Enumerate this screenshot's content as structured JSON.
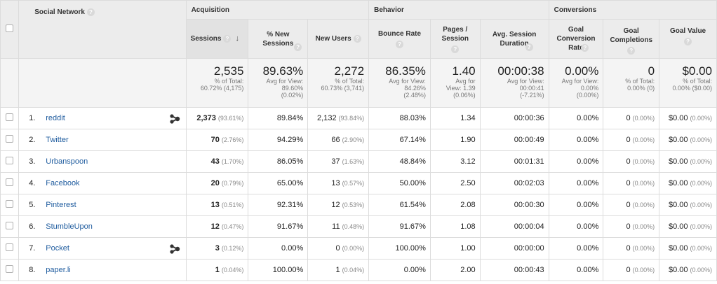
{
  "headers": {
    "social_network": "Social Network",
    "groups": {
      "acquisition": "Acquisition",
      "behavior": "Behavior",
      "conversions": "Conversions"
    },
    "columns": {
      "sessions": "Sessions",
      "new_sessions": "% New Sessions",
      "new_users": "New Users",
      "bounce_rate": "Bounce Rate",
      "pages_session": "Pages / Session",
      "avg_duration": "Avg. Session Duration",
      "goal_conv_rate": "Goal Conversion Rate",
      "goal_completions": "Goal Completions",
      "goal_value": "Goal Value"
    }
  },
  "totals": {
    "sessions": {
      "value": "2,535",
      "sub1": "% of Total:",
      "sub2": "60.72% (4,175)"
    },
    "new_sessions": {
      "value": "89.63%",
      "sub1": "Avg for View:",
      "sub2": "89.60%",
      "sub3": "(0.02%)"
    },
    "new_users": {
      "value": "2,272",
      "sub1": "% of Total:",
      "sub2": "60.73% (3,741)"
    },
    "bounce_rate": {
      "value": "86.35%",
      "sub1": "Avg for View:",
      "sub2": "84.26%",
      "sub3": "(2.48%)"
    },
    "pages_session": {
      "value": "1.40",
      "sub1": "Avg for",
      "sub2": "View: 1.39",
      "sub3": "(0.06%)"
    },
    "avg_duration": {
      "value": "00:00:38",
      "sub1": "Avg for View:",
      "sub2": "00:00:41",
      "sub3": "(-7.21%)"
    },
    "goal_conv_rate": {
      "value": "0.00%",
      "sub1": "Avg for View:",
      "sub2": "0.00%",
      "sub3": "(0.00%)"
    },
    "goal_completions": {
      "value": "0",
      "sub1": "% of Total:",
      "sub2": "0.00% (0)"
    },
    "goal_value": {
      "value": "$0.00",
      "sub1": "% of Total:",
      "sub2": "0.00% ($0.00)"
    }
  },
  "rows": [
    {
      "idx": "1.",
      "name": "reddit",
      "hub": true,
      "sessions": "2,373",
      "sessions_pct": "(93.61%)",
      "new_sessions": "89.84%",
      "new_users": "2,132",
      "new_users_pct": "(93.84%)",
      "bounce": "88.03%",
      "pages": "1.34",
      "duration": "00:00:36",
      "conv_rate": "0.00%",
      "completions": "0",
      "completions_pct": "(0.00%)",
      "value": "$0.00",
      "value_pct": "(0.00%)"
    },
    {
      "idx": "2.",
      "name": "Twitter",
      "hub": false,
      "sessions": "70",
      "sessions_pct": "(2.76%)",
      "new_sessions": "94.29%",
      "new_users": "66",
      "new_users_pct": "(2.90%)",
      "bounce": "67.14%",
      "pages": "1.90",
      "duration": "00:00:49",
      "conv_rate": "0.00%",
      "completions": "0",
      "completions_pct": "(0.00%)",
      "value": "$0.00",
      "value_pct": "(0.00%)"
    },
    {
      "idx": "3.",
      "name": "Urbanspoon",
      "hub": false,
      "sessions": "43",
      "sessions_pct": "(1.70%)",
      "new_sessions": "86.05%",
      "new_users": "37",
      "new_users_pct": "(1.63%)",
      "bounce": "48.84%",
      "pages": "3.12",
      "duration": "00:01:31",
      "conv_rate": "0.00%",
      "completions": "0",
      "completions_pct": "(0.00%)",
      "value": "$0.00",
      "value_pct": "(0.00%)"
    },
    {
      "idx": "4.",
      "name": "Facebook",
      "hub": false,
      "sessions": "20",
      "sessions_pct": "(0.79%)",
      "new_sessions": "65.00%",
      "new_users": "13",
      "new_users_pct": "(0.57%)",
      "bounce": "50.00%",
      "pages": "2.50",
      "duration": "00:02:03",
      "conv_rate": "0.00%",
      "completions": "0",
      "completions_pct": "(0.00%)",
      "value": "$0.00",
      "value_pct": "(0.00%)"
    },
    {
      "idx": "5.",
      "name": "Pinterest",
      "hub": false,
      "sessions": "13",
      "sessions_pct": "(0.51%)",
      "new_sessions": "92.31%",
      "new_users": "12",
      "new_users_pct": "(0.53%)",
      "bounce": "61.54%",
      "pages": "2.08",
      "duration": "00:00:30",
      "conv_rate": "0.00%",
      "completions": "0",
      "completions_pct": "(0.00%)",
      "value": "$0.00",
      "value_pct": "(0.00%)"
    },
    {
      "idx": "6.",
      "name": "StumbleUpon",
      "hub": false,
      "sessions": "12",
      "sessions_pct": "(0.47%)",
      "new_sessions": "91.67%",
      "new_users": "11",
      "new_users_pct": "(0.48%)",
      "bounce": "91.67%",
      "pages": "1.08",
      "duration": "00:00:04",
      "conv_rate": "0.00%",
      "completions": "0",
      "completions_pct": "(0.00%)",
      "value": "$0.00",
      "value_pct": "(0.00%)"
    },
    {
      "idx": "7.",
      "name": "Pocket",
      "hub": true,
      "sessions": "3",
      "sessions_pct": "(0.12%)",
      "new_sessions": "0.00%",
      "new_users": "0",
      "new_users_pct": "(0.00%)",
      "bounce": "100.00%",
      "pages": "1.00",
      "duration": "00:00:00",
      "conv_rate": "0.00%",
      "completions": "0",
      "completions_pct": "(0.00%)",
      "value": "$0.00",
      "value_pct": "(0.00%)"
    },
    {
      "idx": "8.",
      "name": "paper.li",
      "hub": false,
      "sessions": "1",
      "sessions_pct": "(0.04%)",
      "new_sessions": "100.00%",
      "new_users": "1",
      "new_users_pct": "(0.04%)",
      "bounce": "0.00%",
      "pages": "2.00",
      "duration": "00:00:43",
      "conv_rate": "0.00%",
      "completions": "0",
      "completions_pct": "(0.00%)",
      "value": "$0.00",
      "value_pct": "(0.00%)"
    }
  ]
}
